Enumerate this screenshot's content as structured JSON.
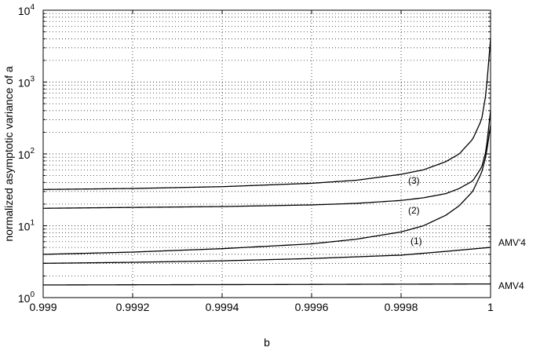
{
  "chart_data": {
    "type": "line",
    "title": "",
    "xlabel": "b",
    "ylabel": "normalized asymptotic variance of a",
    "yscale": "log",
    "xlim": [
      0.999,
      1.0
    ],
    "ylim": [
      1,
      10000
    ],
    "grid": true,
    "x_ticks": [
      {
        "value": 0.999,
        "label": "0.999"
      },
      {
        "value": 0.9992,
        "label": "0.9992"
      },
      {
        "value": 0.9994,
        "label": "0.9994"
      },
      {
        "value": 0.9996,
        "label": "0.9996"
      },
      {
        "value": 0.9998,
        "label": "0.9998"
      },
      {
        "value": 1.0,
        "label": "1"
      }
    ],
    "y_ticks": [
      {
        "value": 1,
        "base": "10",
        "exp": "0"
      },
      {
        "value": 10,
        "base": "10",
        "exp": "1"
      },
      {
        "value": 100,
        "base": "10",
        "exp": "2"
      },
      {
        "value": 1000,
        "base": "10",
        "exp": "3"
      },
      {
        "value": 10000,
        "base": "10",
        "exp": "4"
      }
    ],
    "series": [
      {
        "name": "(3)",
        "x": [
          0.999,
          0.9992,
          0.9994,
          0.9996,
          0.9997,
          0.9998,
          0.99985,
          0.9999,
          0.99993,
          0.99996,
          0.99998,
          0.99999,
          1.0
        ],
        "y": [
          32,
          33,
          35,
          39,
          43,
          52,
          60,
          78,
          100,
          160,
          300,
          700,
          4000
        ]
      },
      {
        "name": "(2)",
        "x": [
          0.999,
          0.9992,
          0.9994,
          0.9996,
          0.9997,
          0.9998,
          0.99985,
          0.9999,
          0.99993,
          0.99996,
          0.99998,
          0.99999,
          1.0
        ],
        "y": [
          17.5,
          18,
          18.5,
          19.5,
          20.5,
          22.5,
          24.5,
          28,
          33,
          42,
          65,
          110,
          400
        ]
      },
      {
        "name": "(1)",
        "x": [
          0.999,
          0.9992,
          0.9994,
          0.9996,
          0.9997,
          0.9998,
          0.99985,
          0.9999,
          0.99993,
          0.99996,
          0.99998,
          0.99999,
          1.0
        ],
        "y": [
          4.0,
          4.3,
          4.8,
          5.6,
          6.5,
          8.2,
          10,
          14,
          19,
          30,
          55,
          95,
          250
        ]
      },
      {
        "name": "AMV'4",
        "x": [
          0.999,
          0.9992,
          0.9994,
          0.9996,
          0.9998,
          0.9999,
          1.0
        ],
        "y": [
          3.0,
          3.1,
          3.25,
          3.5,
          3.9,
          4.4,
          5.0
        ]
      },
      {
        "name": "AMV4",
        "x": [
          0.999,
          0.9995,
          1.0
        ],
        "y": [
          1.5,
          1.52,
          1.55
        ]
      }
    ],
    "annotations": [
      "(3)",
      "(2)",
      "(1)",
      "AMV'4",
      "AMV4"
    ]
  }
}
